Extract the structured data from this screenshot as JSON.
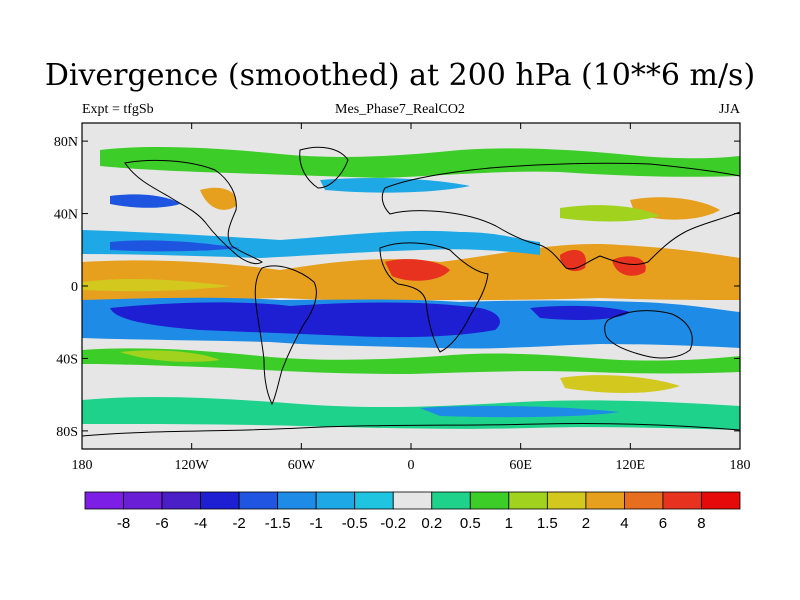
{
  "title": "Divergence (smoothed) at 200 hPa (10**6 m/s)",
  "subtitle_left": "Expt = tfgSb",
  "subtitle_center": "Mes_Phase7_RealCO2",
  "subtitle_right": "JJA",
  "lat_ticks": [
    "80N",
    "40N",
    "0",
    "40S",
    "80S"
  ],
  "lat_values": [
    80,
    40,
    0,
    -40,
    -80
  ],
  "lon_ticks": [
    "180",
    "120W",
    "60W",
    "0",
    "60E",
    "120E",
    "180"
  ],
  "lon_values": [
    -180,
    -120,
    -60,
    0,
    60,
    120,
    180
  ],
  "colorbar": {
    "labels": [
      "-8",
      "-6",
      "-4",
      "-2",
      "-1.5",
      "-1",
      "-0.5",
      "-0.2",
      "0.2",
      "0.5",
      "1",
      "1.5",
      "2",
      "4",
      "6",
      "8"
    ],
    "colors": [
      "#7d1ee6",
      "#6a1fd6",
      "#4b1fc8",
      "#1e1ed2",
      "#1f55e0",
      "#1e8ce6",
      "#1fa8e6",
      "#1fc4e0",
      "#e6e6e6",
      "#1ed28c",
      "#3ccd28",
      "#a0d21e",
      "#d2c81e",
      "#e6a01e",
      "#e66e1e",
      "#e6321e",
      "#e60a0a"
    ]
  }
}
